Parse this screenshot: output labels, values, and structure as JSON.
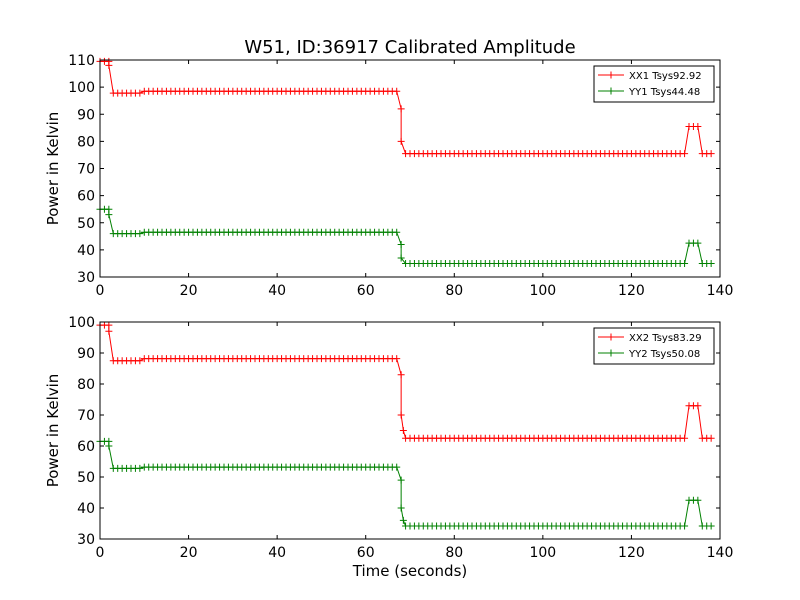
{
  "figure": {
    "title": "W51, ID:36917 Calibrated Amplitude",
    "xlabel": "Time (seconds)"
  },
  "colors": {
    "xx": "#ff0000",
    "yy": "#008000"
  },
  "chart_data": [
    {
      "type": "line",
      "marker": "+",
      "xlim": [
        0,
        140
      ],
      "ylim": [
        30,
        110
      ],
      "xticks": [
        0,
        20,
        40,
        60,
        80,
        100,
        120,
        140
      ],
      "yticks": [
        30,
        40,
        50,
        60,
        70,
        80,
        90,
        100,
        110
      ],
      "xlabel": "",
      "ylabel": "Power in Kelvin",
      "legend_position": "top-right",
      "series": [
        {
          "name": "XX1 Tsys92.92",
          "color": "#ff0000",
          "segments": [
            {
              "x0": 0,
              "x1": 2,
              "level": 109.5
            },
            {
              "x0": 3,
              "x1": 9,
              "level": 97.8
            },
            {
              "x0": 10,
              "x1": 67,
              "level": 98.5
            },
            {
              "x0": 69,
              "x1": 132,
              "level": 75.5
            },
            {
              "x0": 133,
              "x1": 135,
              "level": 85.5
            },
            {
              "x0": 136,
              "x1": 138,
              "level": 75.5
            }
          ],
          "transitions": [
            [
              2,
              108
            ],
            [
              68,
              92
            ],
            [
              68,
              80
            ]
          ]
        },
        {
          "name": "YY1 Tsys44.48",
          "color": "#008000",
          "segments": [
            {
              "x0": 0,
              "x1": 2,
              "level": 55
            },
            {
              "x0": 3,
              "x1": 9,
              "level": 46
            },
            {
              "x0": 10,
              "x1": 67,
              "level": 46.5
            },
            {
              "x0": 69,
              "x1": 132,
              "level": 35
            },
            {
              "x0": 133,
              "x1": 135,
              "level": 42.5
            },
            {
              "x0": 136,
              "x1": 138,
              "level": 35
            }
          ],
          "transitions": [
            [
              2,
              53
            ],
            [
              68,
              42
            ],
            [
              68,
              37
            ]
          ]
        }
      ]
    },
    {
      "type": "line",
      "marker": "+",
      "xlim": [
        0,
        140
      ],
      "ylim": [
        30,
        100
      ],
      "xticks": [
        0,
        20,
        40,
        60,
        80,
        100,
        120,
        140
      ],
      "yticks": [
        30,
        40,
        50,
        60,
        70,
        80,
        90,
        100
      ],
      "xlabel": "Time (seconds)",
      "ylabel": "Power in Kelvin",
      "legend_position": "top-right",
      "series": [
        {
          "name": "XX2 Tsys83.29",
          "color": "#ff0000",
          "segments": [
            {
              "x0": 0,
              "x1": 2,
              "level": 99
            },
            {
              "x0": 3,
              "x1": 9,
              "level": 87.5
            },
            {
              "x0": 10,
              "x1": 67,
              "level": 88.2
            },
            {
              "x0": 69,
              "x1": 132,
              "level": 62.5
            },
            {
              "x0": 133,
              "x1": 135,
              "level": 73
            },
            {
              "x0": 136,
              "x1": 138,
              "level": 62.5
            }
          ],
          "transitions": [
            [
              2,
              97
            ],
            [
              68,
              83
            ],
            [
              68,
              70
            ],
            [
              68.5,
              65
            ]
          ]
        },
        {
          "name": "YY2 Tsys50.08",
          "color": "#008000",
          "segments": [
            {
              "x0": 0,
              "x1": 2,
              "level": 61.5
            },
            {
              "x0": 3,
              "x1": 9,
              "level": 52.8
            },
            {
              "x0": 10,
              "x1": 67,
              "level": 53.2
            },
            {
              "x0": 69,
              "x1": 132,
              "level": 34.2
            },
            {
              "x0": 133,
              "x1": 135,
              "level": 42.5
            },
            {
              "x0": 136,
              "x1": 138,
              "level": 34.2
            }
          ],
          "transitions": [
            [
              2,
              60
            ],
            [
              68,
              49
            ],
            [
              68,
              40
            ],
            [
              68.5,
              36
            ]
          ]
        }
      ]
    }
  ]
}
